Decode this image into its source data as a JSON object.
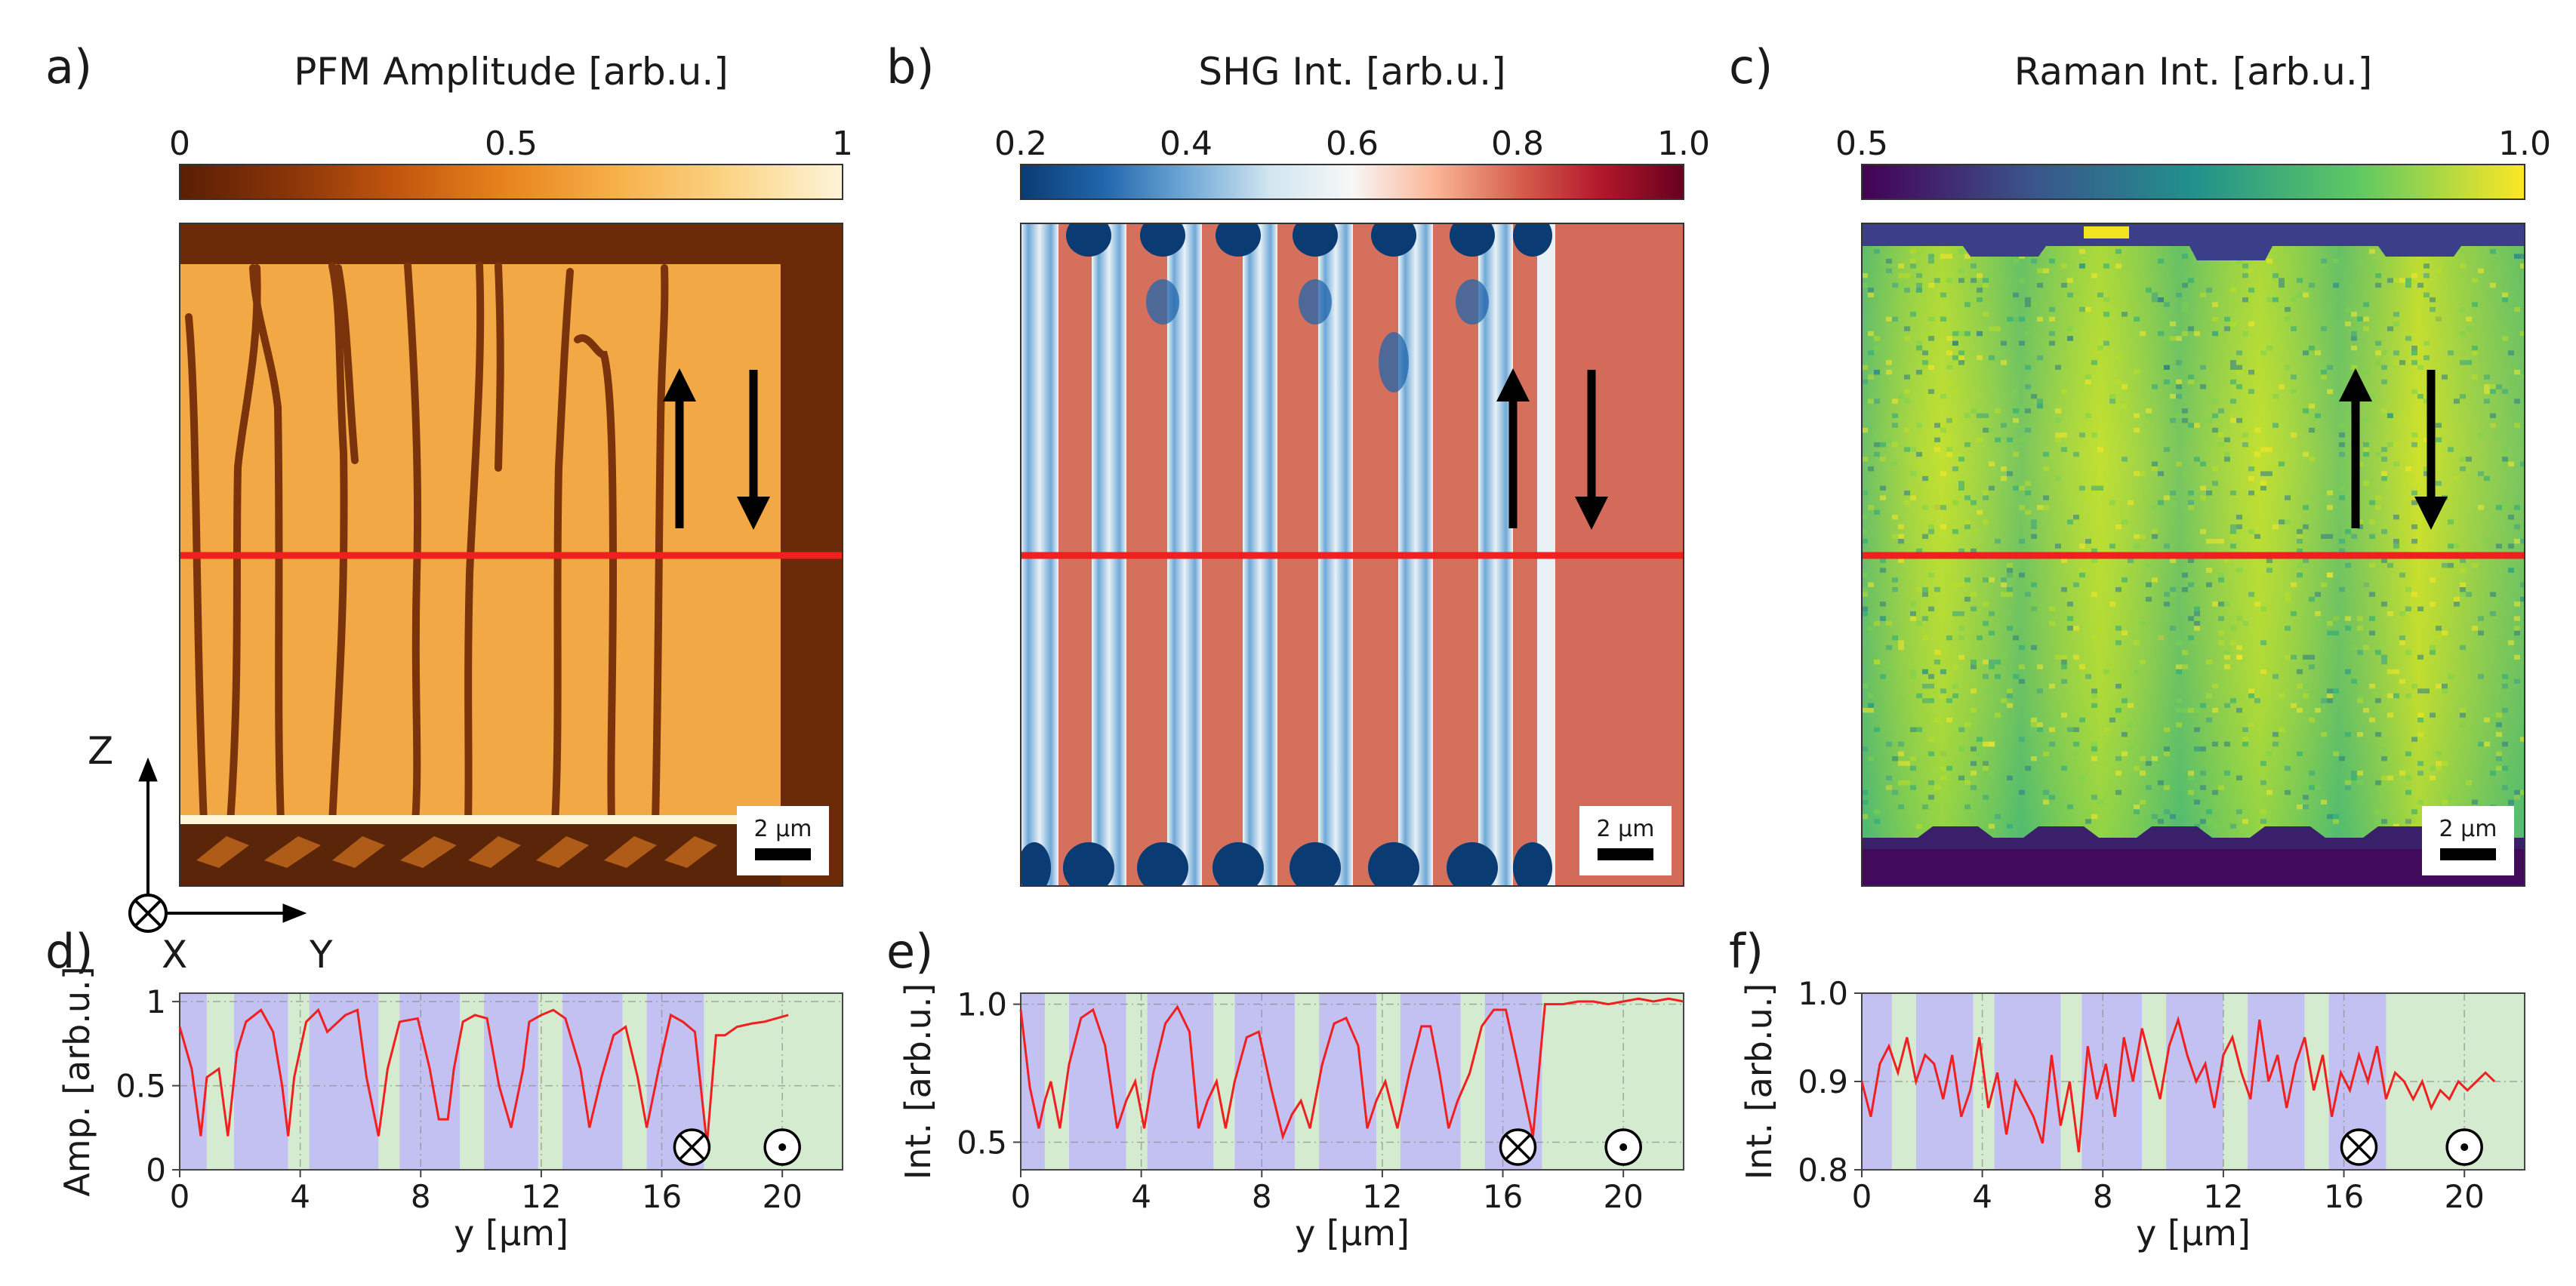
{
  "panel_a": {
    "letter": "a)",
    "colorbar_title": "PFM Amplitude [arb.u.]",
    "colorbar_ticks": [
      "0",
      "0.5",
      "1"
    ],
    "colormap": [
      "#5a1e05",
      "#8a3508",
      "#c4570e",
      "#e8861f",
      "#f7b24c",
      "#fbd588",
      "#fdf4d8"
    ],
    "scale_bar": "2 µm",
    "axis_z": "Z",
    "axis_x": "X",
    "axis_y": "Y"
  },
  "panel_b": {
    "letter": "b)",
    "colorbar_title": "SHG Int. [arb.u.]",
    "colorbar_ticks": [
      "0.2",
      "0.4",
      "0.6",
      "0.8",
      "1.0"
    ],
    "colormap": [
      "#0a3b73",
      "#2166ac",
      "#6fa8d6",
      "#d1e5f0",
      "#f7f7f7",
      "#fbb596",
      "#d6604d",
      "#b2182b",
      "#67001f"
    ],
    "scale_bar": "2 µm"
  },
  "panel_c": {
    "letter": "c)",
    "colorbar_title": "Raman Int. [arb.u.]",
    "colorbar_ticks": [
      "0.5",
      "1.0"
    ],
    "colormap": [
      "#440154",
      "#3b528b",
      "#21918c",
      "#5ec962",
      "#fde725"
    ],
    "scale_bar": "2 µm"
  },
  "panel_d": {
    "letter": "d)"
  },
  "panel_e": {
    "letter": "e)"
  },
  "panel_f": {
    "letter": "f)"
  },
  "colors": {
    "domain_blue": "#b9b6ee",
    "domain_green": "#cde8c8",
    "profile_line": "#f02020",
    "arrow": "#000000"
  },
  "chart_data": [
    {
      "panel": "d",
      "type": "line",
      "xlabel": "y [µm]",
      "ylabel": "Amp. [arb.u.]",
      "xlim": [
        0,
        22
      ],
      "ylim": [
        0,
        1.05
      ],
      "xticks": [
        "0",
        "4",
        "8",
        "12",
        "16",
        "20"
      ],
      "yticks": [
        "0",
        "0.5",
        "1"
      ],
      "series": [
        {
          "x": [
            0,
            0.4,
            0.7,
            0.9,
            1.3,
            1.6,
            1.9,
            2.2,
            2.7,
            3.1,
            3.4,
            3.6,
            3.8,
            4.2,
            4.6,
            4.9,
            5.5,
            5.9,
            6.2,
            6.6,
            6.9,
            7.3,
            7.9,
            8.3,
            8.6,
            8.9,
            9.1,
            9.4,
            9.8,
            10.2,
            10.6,
            11.0,
            11.4,
            11.6,
            12.0,
            12.4,
            12.8,
            13.3,
            13.6,
            14.0,
            14.4,
            14.8,
            15.2,
            15.5,
            15.9,
            16.3,
            16.7,
            17.1,
            17.5,
            17.8,
            18.1,
            18.5,
            19.0,
            19.4,
            19.8,
            20.2
          ],
          "y": [
            0.85,
            0.6,
            0.2,
            0.55,
            0.6,
            0.2,
            0.7,
            0.88,
            0.95,
            0.82,
            0.5,
            0.2,
            0.55,
            0.88,
            0.95,
            0.82,
            0.92,
            0.95,
            0.55,
            0.2,
            0.6,
            0.88,
            0.9,
            0.6,
            0.3,
            0.3,
            0.6,
            0.88,
            0.92,
            0.9,
            0.5,
            0.25,
            0.6,
            0.88,
            0.92,
            0.95,
            0.9,
            0.6,
            0.25,
            0.55,
            0.8,
            0.85,
            0.55,
            0.25,
            0.6,
            0.92,
            0.88,
            0.82,
            0.15,
            0.8,
            0.8,
            0.85,
            0.87,
            0.88,
            0.9,
            0.92
          ]
        }
      ],
      "markers": [
        {
          "symbol": "⊗",
          "x": 17,
          "y": 0.15
        },
        {
          "symbol": "⊙",
          "x": 20,
          "y": 0.15
        }
      ]
    },
    {
      "panel": "e",
      "type": "line",
      "xlabel": "y [µm]",
      "ylabel": "Int. [arb.u.]",
      "xlim": [
        0,
        22
      ],
      "ylim": [
        0.4,
        1.04
      ],
      "xticks": [
        "0",
        "4",
        "8",
        "12",
        "16",
        "20"
      ],
      "yticks": [
        "0.5",
        "1.0"
      ],
      "series": [
        {
          "x": [
            0,
            0.3,
            0.6,
            0.8,
            1.0,
            1.3,
            1.6,
            2.0,
            2.4,
            2.8,
            3.2,
            3.5,
            3.8,
            4.1,
            4.4,
            4.8,
            5.2,
            5.6,
            5.9,
            6.2,
            6.5,
            6.8,
            7.1,
            7.5,
            7.9,
            8.3,
            8.7,
            9.0,
            9.3,
            9.6,
            10.0,
            10.4,
            10.8,
            11.2,
            11.5,
            11.8,
            12.1,
            12.5,
            12.9,
            13.3,
            13.6,
            13.9,
            14.2,
            14.5,
            14.9,
            15.3,
            15.7,
            16.1,
            16.5,
            17.0,
            17.4,
            17.7,
            18.0,
            18.5,
            19.0,
            19.5,
            20.0,
            20.5,
            21.0,
            21.5,
            22.0
          ],
          "y": [
            0.98,
            0.7,
            0.55,
            0.65,
            0.72,
            0.55,
            0.78,
            0.95,
            0.98,
            0.85,
            0.55,
            0.65,
            0.72,
            0.55,
            0.75,
            0.93,
            0.99,
            0.9,
            0.55,
            0.65,
            0.72,
            0.55,
            0.72,
            0.88,
            0.9,
            0.7,
            0.52,
            0.6,
            0.65,
            0.55,
            0.78,
            0.93,
            0.95,
            0.85,
            0.55,
            0.65,
            0.72,
            0.55,
            0.75,
            0.92,
            0.92,
            0.75,
            0.55,
            0.65,
            0.75,
            0.92,
            0.98,
            0.98,
            0.78,
            0.52,
            1.0,
            1.0,
            1.0,
            1.01,
            1.01,
            1.0,
            1.01,
            1.02,
            1.01,
            1.02,
            1.01
          ]
        }
      ],
      "markers": [
        {
          "symbol": "⊗",
          "x": 16.5,
          "y": 0.48
        },
        {
          "symbol": "⊙",
          "x": 20,
          "y": 0.48
        }
      ]
    },
    {
      "panel": "f",
      "type": "line",
      "xlabel": "y [µm]",
      "ylabel": "Int. [arb.u.]",
      "xlim": [
        0,
        22
      ],
      "ylim": [
        0.8,
        1.0
      ],
      "xticks": [
        "0",
        "4",
        "8",
        "12",
        "16",
        "20"
      ],
      "yticks": [
        "0.8",
        "0.9",
        "1.0"
      ],
      "series": [
        {
          "x": [
            0,
            0.3,
            0.6,
            0.9,
            1.2,
            1.5,
            1.8,
            2.1,
            2.4,
            2.7,
            3.0,
            3.3,
            3.6,
            3.9,
            4.2,
            4.5,
            4.8,
            5.1,
            5.4,
            5.7,
            6.0,
            6.3,
            6.6,
            6.9,
            7.2,
            7.5,
            7.8,
            8.1,
            8.4,
            8.7,
            9.0,
            9.3,
            9.6,
            9.9,
            10.2,
            10.5,
            10.8,
            11.1,
            11.4,
            11.7,
            12.0,
            12.3,
            12.6,
            12.9,
            13.2,
            13.5,
            13.8,
            14.1,
            14.4,
            14.7,
            15.0,
            15.3,
            15.6,
            15.9,
            16.2,
            16.5,
            16.8,
            17.1,
            17.4,
            17.7,
            18.0,
            18.3,
            18.6,
            18.9,
            19.2,
            19.5,
            19.8,
            20.1,
            20.4,
            20.7,
            21.0
          ],
          "y": [
            0.9,
            0.86,
            0.92,
            0.94,
            0.91,
            0.95,
            0.9,
            0.93,
            0.92,
            0.88,
            0.93,
            0.86,
            0.89,
            0.95,
            0.87,
            0.91,
            0.84,
            0.9,
            0.88,
            0.86,
            0.83,
            0.93,
            0.85,
            0.9,
            0.82,
            0.94,
            0.88,
            0.92,
            0.86,
            0.95,
            0.9,
            0.96,
            0.92,
            0.88,
            0.94,
            0.97,
            0.93,
            0.9,
            0.92,
            0.87,
            0.93,
            0.95,
            0.91,
            0.88,
            0.97,
            0.9,
            0.93,
            0.87,
            0.92,
            0.95,
            0.89,
            0.93,
            0.86,
            0.91,
            0.89,
            0.93,
            0.9,
            0.94,
            0.88,
            0.91,
            0.9,
            0.88,
            0.9,
            0.87,
            0.89,
            0.88,
            0.9,
            0.89,
            0.9,
            0.91,
            0.9
          ]
        }
      ],
      "markers": [
        {
          "symbol": "⊗",
          "x": 16.5,
          "y": 0.825
        },
        {
          "symbol": "⊙",
          "x": 20,
          "y": 0.825
        }
      ]
    }
  ]
}
